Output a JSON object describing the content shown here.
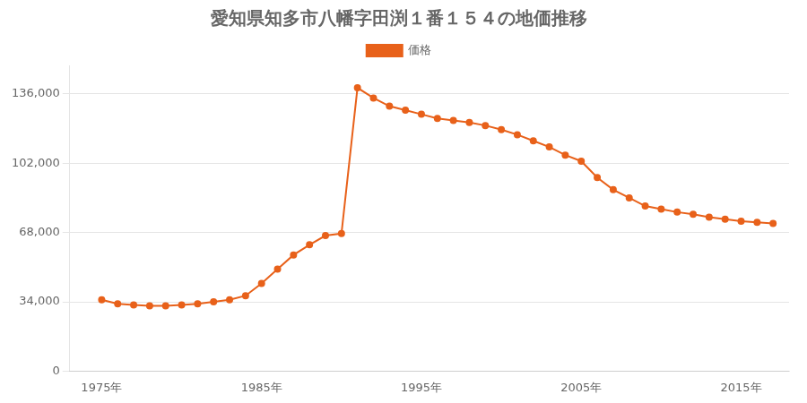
{
  "chart_data": {
    "type": "line",
    "title": "愛知県知多市八幡字田渕１番１５４の地価推移",
    "x": [
      1975,
      1976,
      1977,
      1978,
      1979,
      1980,
      1981,
      1982,
      1983,
      1984,
      1985,
      1986,
      1987,
      1988,
      1989,
      1990,
      1991,
      1992,
      1993,
      1994,
      1995,
      1996,
      1997,
      1998,
      1999,
      2000,
      2001,
      2002,
      2003,
      2004,
      2005,
      2006,
      2007,
      2008,
      2009,
      2010,
      2011,
      2012,
      2013,
      2014,
      2015,
      2016,
      2017
    ],
    "series": [
      {
        "name": "価格",
        "color": "#E8611A",
        "marker": "circle",
        "values": [
          35000,
          33000,
          32500,
          32000,
          32000,
          32500,
          33000,
          34000,
          35000,
          37000,
          43000,
          50000,
          57000,
          62000,
          66500,
          67500,
          139000,
          134000,
          130000,
          128000,
          126000,
          124000,
          123000,
          122000,
          120500,
          118500,
          116000,
          113000,
          110000,
          106000,
          103000,
          95000,
          89000,
          85000,
          81000,
          79500,
          78000,
          77000,
          75500,
          74500,
          73500,
          73000,
          72500
        ]
      }
    ],
    "xlim": [
      1973,
      2018
    ],
    "xticks": [
      {
        "value": 1975,
        "label": "1975年"
      },
      {
        "value": 1985,
        "label": "1985年"
      },
      {
        "value": 1995,
        "label": "1995年"
      },
      {
        "value": 2005,
        "label": "2005年"
      },
      {
        "value": 2015,
        "label": "2015年"
      }
    ],
    "ylim": [
      0,
      150000
    ],
    "yticks": [
      0,
      {
        "value": 34000,
        "label": "34,000"
      },
      {
        "value": 68000,
        "label": "68,000"
      },
      {
        "value": 102000,
        "label": "102,000"
      },
      {
        "value": 136000,
        "label": "136,000"
      }
    ],
    "grid": "y",
    "legend": "top"
  }
}
